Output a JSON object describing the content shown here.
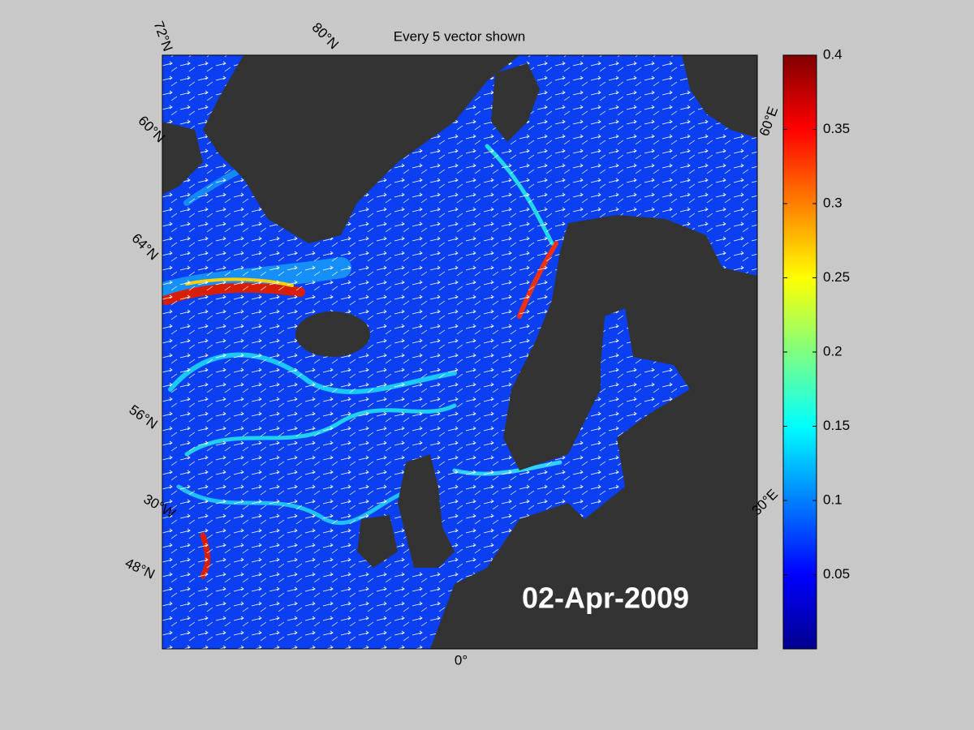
{
  "title": "Every 5 vector shown",
  "date": "02-Apr-2009",
  "map_labels": [
    "72°N",
    "80°N",
    "60°E",
    "60°N",
    "64°N",
    "56°N",
    "30°W",
    "48°N",
    "30°E",
    "0°"
  ],
  "colorbar": {
    "lim": [
      0,
      0.4
    ],
    "ticks": [
      0.05,
      0.1,
      0.15,
      0.2,
      0.25,
      0.3,
      0.35,
      0.4
    ],
    "colormap": "jet"
  }
}
